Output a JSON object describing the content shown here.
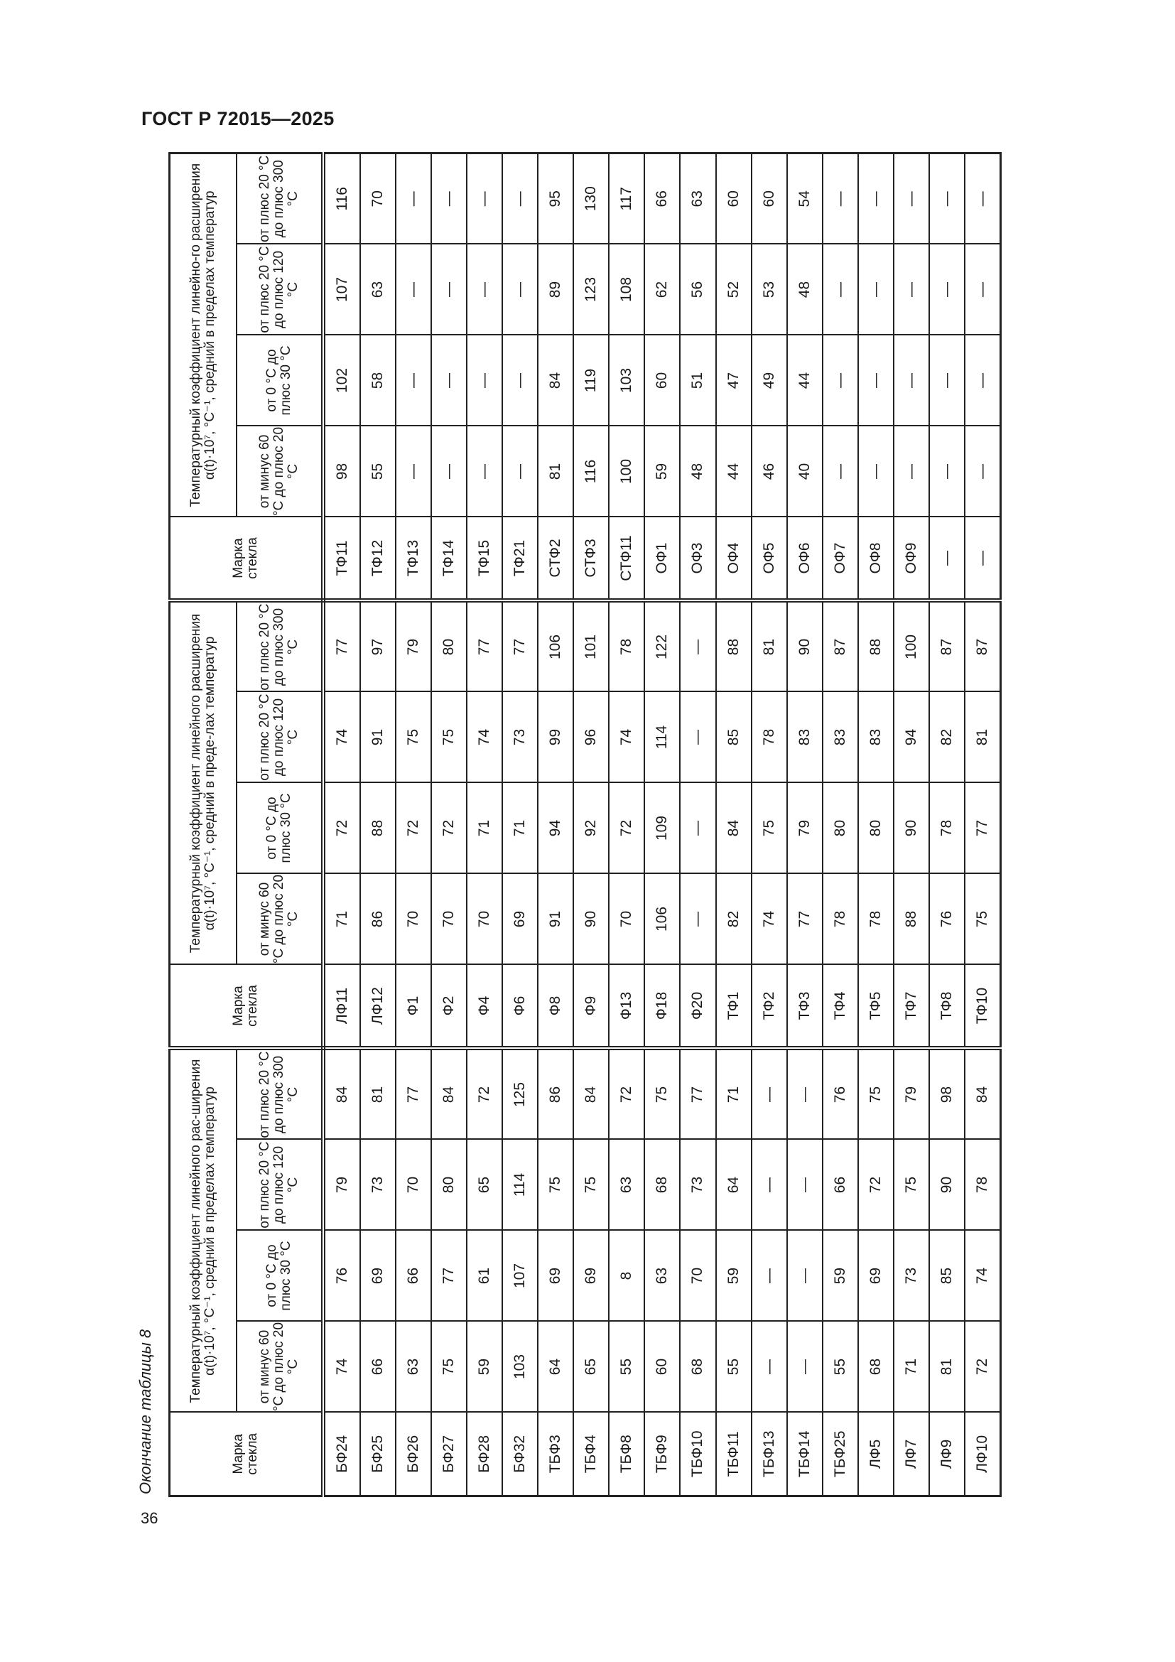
{
  "header": {
    "doc_id": "ГОСТ Р 72015—2025",
    "page_number": "36"
  },
  "table": {
    "caption": "Окончание таблицы 8",
    "mark_header": "Марка стекла",
    "group_headers": [
      "Температурный коэффициент линейного рас-ширения α(t)·10⁷, °С⁻¹, средний в пределах температур",
      "Температурный коэффициент линейного расширения α(t)·10⁷, °С⁻¹, средний в преде-лах температур",
      "Температурный коэффициент линейно-го расширения α(t)·10⁷, °С⁻¹, средний в пределах температур"
    ],
    "sub_headers": [
      "от минус 60 °С до плюс 20 °С",
      "от 0 °С до плюс 30 °С",
      "от плюс 20 °С до плюс 120 °С",
      "от плюс 20 °С до плюс 300 °С"
    ],
    "rows": [
      [
        [
          "БФ24",
          "74",
          "76",
          "79",
          "84"
        ],
        [
          "ЛФ11",
          "71",
          "72",
          "74",
          "77"
        ],
        [
          "ТФ11",
          "98",
          "102",
          "107",
          "116"
        ]
      ],
      [
        [
          "БФ25",
          "66",
          "69",
          "73",
          "81"
        ],
        [
          "ЛФ12",
          "86",
          "88",
          "91",
          "97"
        ],
        [
          "ТФ12",
          "55",
          "58",
          "63",
          "70"
        ]
      ],
      [
        [
          "БФ26",
          "63",
          "66",
          "70",
          "77"
        ],
        [
          "Ф1",
          "70",
          "72",
          "75",
          "79"
        ],
        [
          "ТФ13",
          "—",
          "—",
          "—",
          "—"
        ]
      ],
      [
        [
          "БФ27",
          "75",
          "77",
          "80",
          "84"
        ],
        [
          "Ф2",
          "70",
          "72",
          "75",
          "80"
        ],
        [
          "ТФ14",
          "—",
          "—",
          "—",
          "—"
        ]
      ],
      [
        [
          "БФ28",
          "59",
          "61",
          "65",
          "72"
        ],
        [
          "Ф4",
          "70",
          "71",
          "74",
          "77"
        ],
        [
          "ТФ15",
          "—",
          "—",
          "—",
          "—"
        ]
      ],
      [
        [
          "БФ32",
          "103",
          "107",
          "114",
          "125"
        ],
        [
          "Ф6",
          "69",
          "71",
          "73",
          "77"
        ],
        [
          "ТФ21",
          "—",
          "—",
          "—",
          "—"
        ]
      ],
      [
        [
          "ТБФ3",
          "64",
          "69",
          "75",
          "86"
        ],
        [
          "Ф8",
          "91",
          "94",
          "99",
          "106"
        ],
        [
          "СТФ2",
          "81",
          "84",
          "89",
          "95"
        ]
      ],
      [
        [
          "ТБФ4",
          "65",
          "69",
          "75",
          "84"
        ],
        [
          "Ф9",
          "90",
          "92",
          "96",
          "101"
        ],
        [
          "СТФ3",
          "116",
          "119",
          "123",
          "130"
        ]
      ],
      [
        [
          "ТБФ8",
          "55",
          "8",
          "63",
          "72"
        ],
        [
          "Ф13",
          "70",
          "72",
          "74",
          "78"
        ],
        [
          "СТФ11",
          "100",
          "103",
          "108",
          "117"
        ]
      ],
      [
        [
          "ТБФ9",
          "60",
          "63",
          "68",
          "75"
        ],
        [
          "Ф18",
          "106",
          "109",
          "114",
          "122"
        ],
        [
          "ОФ1",
          "59",
          "60",
          "62",
          "66"
        ]
      ],
      [
        [
          "ТБФ10",
          "68",
          "70",
          "73",
          "77"
        ],
        [
          "Ф20",
          "—",
          "—",
          "—",
          "—"
        ],
        [
          "ОФ3",
          "48",
          "51",
          "56",
          "63"
        ]
      ],
      [
        [
          "ТБФ11",
          "55",
          "59",
          "64",
          "71"
        ],
        [
          "ТФ1",
          "82",
          "84",
          "85",
          "88"
        ],
        [
          "ОФ4",
          "44",
          "47",
          "52",
          "60"
        ]
      ],
      [
        [
          "ТБФ13",
          "—",
          "—",
          "—",
          "—"
        ],
        [
          "ТФ2",
          "74",
          "75",
          "78",
          "81"
        ],
        [
          "ОФ5",
          "46",
          "49",
          "53",
          "60"
        ]
      ],
      [
        [
          "ТБФ14",
          "—",
          "—",
          "—",
          "—"
        ],
        [
          "ТФ3",
          "77",
          "79",
          "83",
          "90"
        ],
        [
          "ОФ6",
          "40",
          "44",
          "48",
          "54"
        ]
      ],
      [
        [
          "ТБФ25",
          "55",
          "59",
          "66",
          "76"
        ],
        [
          "ТФ4",
          "78",
          "80",
          "83",
          "87"
        ],
        [
          "ОФ7",
          "—",
          "—",
          "—",
          "—"
        ]
      ],
      [
        [
          "ЛФ5",
          "68",
          "69",
          "72",
          "75"
        ],
        [
          "ТФ5",
          "78",
          "80",
          "83",
          "88"
        ],
        [
          "ОФ8",
          "—",
          "—",
          "—",
          "—"
        ]
      ],
      [
        [
          "ЛФ7",
          "71",
          "73",
          "75",
          "79"
        ],
        [
          "ТФ7",
          "88",
          "90",
          "94",
          "100"
        ],
        [
          "ОФ9",
          "—",
          "—",
          "—",
          "—"
        ]
      ],
      [
        [
          "ЛФ9",
          "81",
          "85",
          "90",
          "98"
        ],
        [
          "ТФ8",
          "76",
          "78",
          "82",
          "87"
        ],
        [
          "—",
          "—",
          "—",
          "—",
          "—"
        ]
      ],
      [
        [
          "ЛФ10",
          "72",
          "74",
          "78",
          "84"
        ],
        [
          "ТФ10",
          "75",
          "77",
          "81",
          "87"
        ],
        [
          "—",
          "—",
          "—",
          "—",
          "—"
        ]
      ]
    ]
  }
}
